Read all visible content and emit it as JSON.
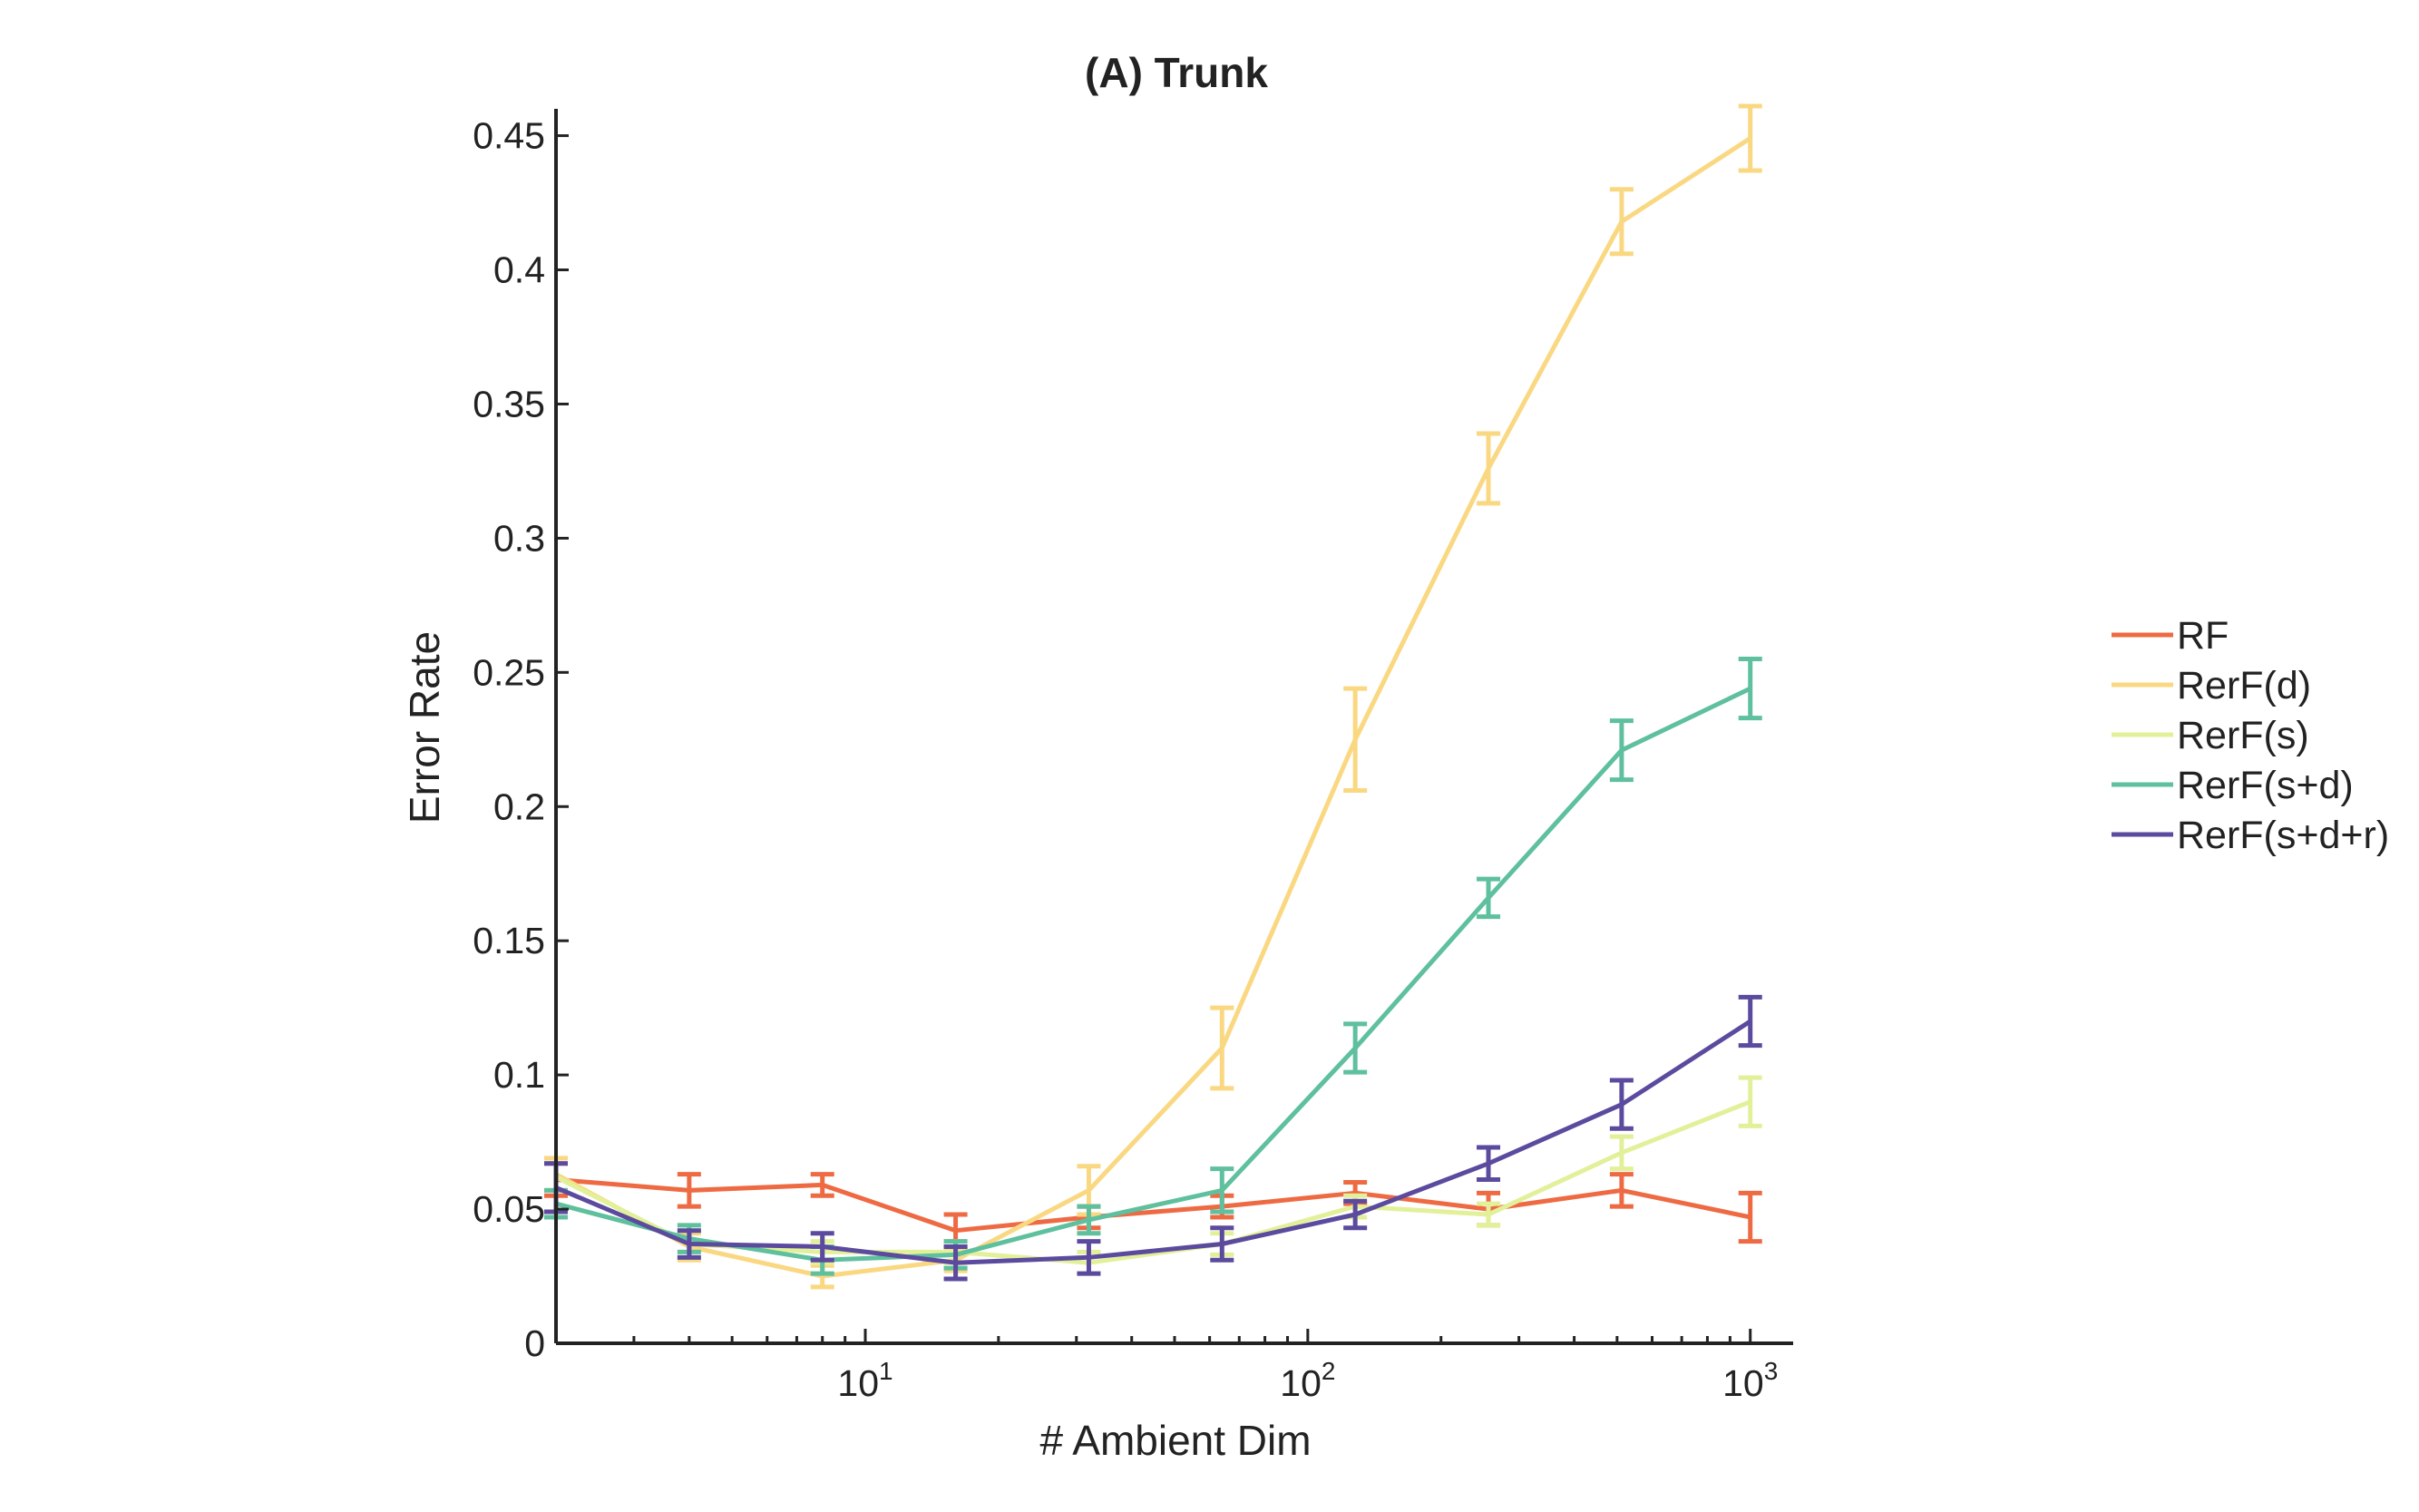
{
  "chart_data": {
    "type": "line",
    "title": "(A) Trunk",
    "xlabel": "# Ambient Dim",
    "ylabel": "Error Rate",
    "xscale": "log",
    "xlim": [
      2,
      1250
    ],
    "ylim": [
      0,
      0.46
    ],
    "x_ticks": [
      {
        "value": 10,
        "base": "10",
        "exp": "1"
      },
      {
        "value": 100,
        "base": "10",
        "exp": "2"
      },
      {
        "value": 1000,
        "base": "10",
        "exp": "3"
      }
    ],
    "y_ticks": [
      "0",
      "0.05",
      "0.1",
      "0.15",
      "0.2",
      "0.25",
      "0.3",
      "0.35",
      "0.4",
      "0.45"
    ],
    "grid": false,
    "legend_position": "right",
    "x": [
      2,
      4,
      8,
      16,
      32,
      64,
      128,
      256,
      512,
      1000
    ],
    "series": [
      {
        "name": "RF",
        "color": "#EE6A43",
        "values": [
          0.061,
          0.057,
          0.059,
          0.042,
          0.047,
          0.051,
          0.056,
          0.05,
          0.057,
          0.047
        ],
        "errors": [
          0.006,
          0.006,
          0.004,
          0.006,
          0.004,
          0.004,
          0.004,
          0.006,
          0.006,
          0.009
        ]
      },
      {
        "name": "RerF(d)",
        "color": "#FAD882",
        "values": [
          0.063,
          0.036,
          0.025,
          0.031,
          0.057,
          0.11,
          0.225,
          0.326,
          0.418,
          0.449
        ],
        "errors": [
          0.006,
          0.005,
          0.004,
          0.004,
          0.009,
          0.015,
          0.019,
          0.013,
          0.012,
          0.012
        ]
      },
      {
        "name": "RerF(s)",
        "color": "#E3F09A",
        "values": [
          0.062,
          0.037,
          0.034,
          0.034,
          0.03,
          0.037,
          0.051,
          0.048,
          0.071,
          0.09
        ],
        "errors": [
          0.005,
          0.005,
          0.004,
          0.004,
          0.004,
          0.004,
          0.004,
          0.004,
          0.006,
          0.009
        ]
      },
      {
        "name": "RerF(s+d)",
        "color": "#5EC09D",
        "values": [
          0.052,
          0.039,
          0.031,
          0.033,
          0.046,
          0.057,
          0.11,
          0.166,
          0.221,
          0.244
        ],
        "errors": [
          0.005,
          0.005,
          0.005,
          0.005,
          0.005,
          0.008,
          0.009,
          0.007,
          0.011,
          0.011
        ]
      },
      {
        "name": "RerF(s+d+r)",
        "color": "#5B4A9E",
        "values": [
          0.058,
          0.037,
          0.036,
          0.03,
          0.032,
          0.037,
          0.048,
          0.067,
          0.089,
          0.12
        ],
        "errors": [
          0.009,
          0.005,
          0.005,
          0.006,
          0.006,
          0.006,
          0.005,
          0.006,
          0.009,
          0.009
        ]
      }
    ]
  }
}
